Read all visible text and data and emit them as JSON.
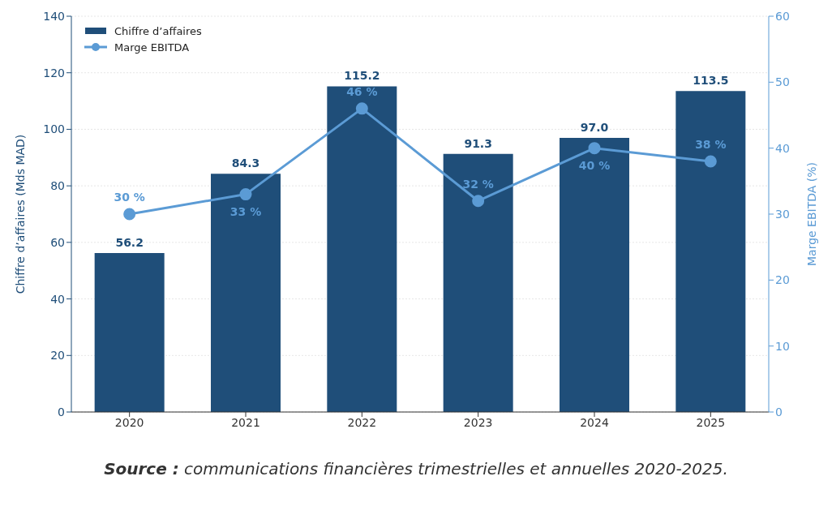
{
  "chart_data": {
    "type": "bar",
    "categories": [
      "2020",
      "2021",
      "2022",
      "2023",
      "2024",
      "2025"
    ],
    "series": [
      {
        "name": "Chiffre d’affaires",
        "color": "#1f4e79",
        "values": [
          56.2,
          84.3,
          115.2,
          91.3,
          97.0,
          113.5
        ],
        "value_labels": [
          "56.2",
          "84.3",
          "115.2",
          "91.3",
          "97.0",
          "113.5"
        ]
      },
      {
        "name": "Marge EBITDA",
        "type": "line",
        "axis": "y2",
        "color": "#5b9bd5",
        "values": [
          30,
          33,
          46,
          32,
          40,
          38
        ],
        "value_labels": [
          "30 %",
          "33 %",
          "46 %",
          "32 %",
          "40 %",
          "38 %"
        ]
      }
    ],
    "ylabel": "Chiffre d’affaires (Mds MAD)",
    "y2label": "Marge EBITDA (%)",
    "ylim": [
      0,
      140
    ],
    "yticks": [
      0,
      20,
      40,
      60,
      80,
      100,
      120,
      140
    ],
    "y2lim": [
      0,
      60
    ],
    "y2ticks": [
      0,
      10,
      20,
      30,
      40,
      50,
      60
    ],
    "grid": "y",
    "legend": "top left",
    "marker": "circle",
    "annotations": [
      "Source : communications financières trimestrielles et annuelles 2020-2025."
    ]
  }
}
